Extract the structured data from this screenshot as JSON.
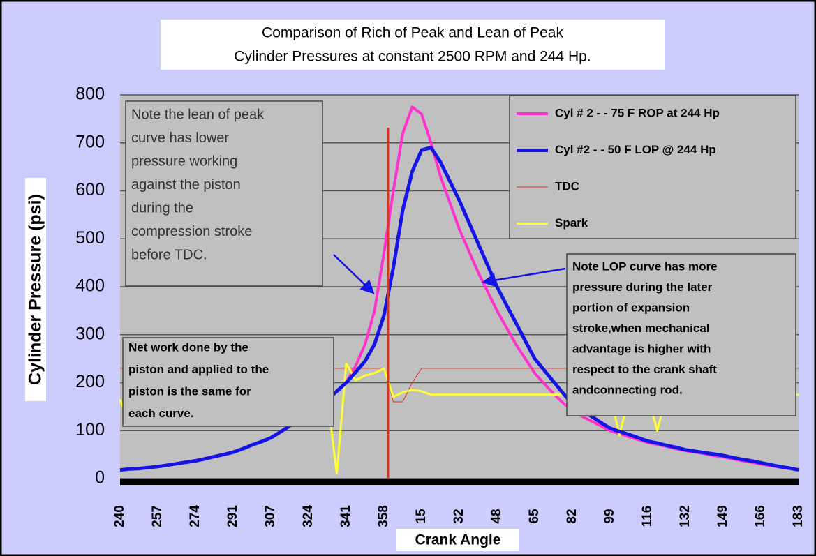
{
  "chart_data": {
    "type": "line",
    "title": [
      "Comparison of Rich of Peak and Lean of Peak",
      "Cylinder Pressures at constant 2500  RPM and 244 Hp."
    ],
    "y_label": "Cylinder Pressure (psi)",
    "x_label": "Crank Angle",
    "categories": [
      "240",
      null,
      null,
      null,
      "257",
      null,
      null,
      null,
      "274",
      null,
      null,
      null,
      "291",
      null,
      null,
      null,
      "307",
      null,
      null,
      null,
      "324",
      null,
      null,
      null,
      "341",
      null,
      null,
      null,
      "358",
      null,
      null,
      null,
      "15",
      null,
      null,
      null,
      "32",
      null,
      null,
      null,
      "48",
      null,
      null,
      null,
      "65",
      null,
      null,
      null,
      "82",
      null,
      null,
      null,
      "99",
      null,
      null,
      null,
      "116",
      null,
      null,
      null,
      "132",
      null,
      null,
      null,
      "149",
      null,
      null,
      null,
      "166",
      null,
      null,
      null,
      "183"
    ],
    "ylim": [
      0,
      800
    ],
    "yticks": [
      0,
      100,
      200,
      300,
      400,
      500,
      600,
      700,
      800
    ],
    "grid": true,
    "legend": "upper right",
    "series": [
      {
        "name": "Cyl # 2 - - 75 F ROP at 244 Hp",
        "color": "#ff33cc",
        "width": 4,
        "values": [
          18,
          20,
          21,
          23,
          25,
          28,
          31,
          35,
          38,
          42,
          46,
          51,
          55,
          62,
          70,
          77,
          85,
          97,
          110,
          122,
          135,
          150,
          165,
          182,
          200,
          235,
          280,
          350,
          470,
          600,
          720,
          775,
          760,
          700,
          630,
          575,
          520,
          475,
          430,
          390,
          350,
          315,
          280,
          250,
          220,
          198,
          177,
          158,
          140,
          130,
          120,
          110,
          100,
          94,
          87,
          81,
          75,
          71,
          67,
          62,
          58,
          55,
          52,
          48,
          45,
          41,
          37,
          34,
          30,
          27,
          24,
          21,
          18
        ]
      },
      {
        "name": "Cyl #2 - - 50 F LOP @ 244 Hp",
        "color": "#1414e6",
        "width": 5,
        "values": [
          18,
          20,
          21,
          23,
          25,
          28,
          31,
          34,
          37,
          41,
          46,
          50,
          55,
          62,
          70,
          77,
          85,
          97,
          110,
          122,
          135,
          150,
          165,
          182,
          200,
          222,
          245,
          280,
          340,
          440,
          560,
          640,
          685,
          690,
          660,
          620,
          580,
          535,
          490,
          445,
          400,
          362,
          325,
          287,
          250,
          226,
          202,
          178,
          155,
          142,
          130,
          117,
          105,
          98,
          92,
          85,
          78,
          74,
          69,
          65,
          60,
          57,
          54,
          51,
          48,
          44,
          40,
          37,
          33,
          29,
          25,
          22,
          18
        ]
      },
      {
        "name": "TDC",
        "color": "#e03020",
        "width": 1,
        "values": [
          230,
          230,
          230,
          230,
          230,
          230,
          230,
          230,
          230,
          230,
          230,
          230,
          230,
          230,
          230,
          230,
          230,
          230,
          230,
          230,
          230,
          230,
          230,
          230,
          230,
          230,
          230,
          230,
          230,
          160,
          160,
          200,
          230,
          230,
          230,
          230,
          230,
          230,
          230,
          230,
          230,
          230,
          230,
          230,
          230,
          230,
          230,
          230,
          230,
          230,
          230,
          230,
          230,
          230,
          230,
          230,
          230,
          230,
          230,
          230,
          230,
          230,
          230,
          230,
          230,
          230,
          230,
          230,
          230,
          230,
          230,
          230,
          230
        ]
      },
      {
        "name": "Spark",
        "color": "#ffff33",
        "width": 3,
        "values": [
          165,
          110,
          150,
          170,
          170,
          170,
          170,
          170,
          170,
          170,
          170,
          170,
          170,
          170,
          170,
          170,
          170,
          170,
          170,
          170,
          170,
          170,
          170,
          10,
          240,
          205,
          215,
          220,
          230,
          170,
          180,
          185,
          182,
          175,
          175,
          175,
          175,
          175,
          175,
          175,
          175,
          175,
          175,
          175,
          175,
          175,
          175,
          175,
          175,
          175,
          175,
          175,
          175,
          90,
          172,
          175,
          175,
          100,
          175,
          175,
          175,
          175,
          175,
          175,
          175,
          175,
          175,
          175,
          175,
          175,
          175,
          175,
          175
        ]
      }
    ],
    "annotations": [
      [
        "Note the lean of peak",
        "curve has lower",
        "pressure working",
        "against the piston",
        "during the",
        "compression stroke",
        "before TDC."
      ],
      [
        "Net work done by the",
        "piston and applied to the",
        "piston is the same for",
        "each curve."
      ],
      [
        "Note LOP curve has more",
        "pressure during the later",
        "portion of expansion",
        "stroke,when mechanical",
        "advantage is higher with",
        "respect to the crank shaft",
        "andconnecting rod."
      ]
    ]
  }
}
